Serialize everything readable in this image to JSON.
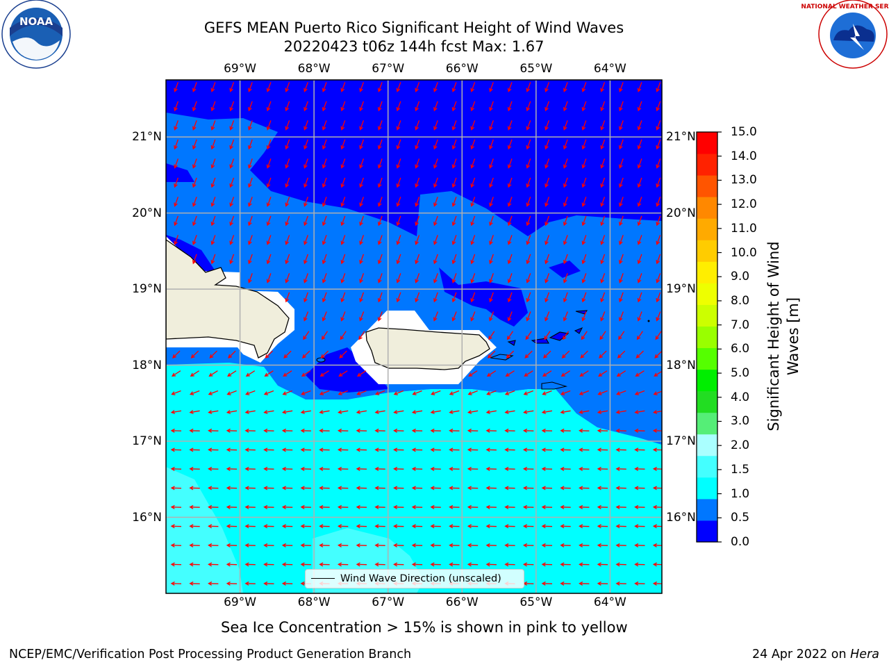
{
  "header": {
    "title": "GEFS MEAN Puerto Rico Significant Height of Wind Waves",
    "subtitle": "20220423 t06z 144h fcst   Max: 1.67"
  },
  "logos": {
    "left": "noaa-logo",
    "right": "national-weather-service-logo",
    "left_text": "NOAA",
    "right_text": "NATIONAL WEATHER SERVICE"
  },
  "map": {
    "lon_labels": [
      "69°W",
      "68°W",
      "67°W",
      "66°W",
      "65°W",
      "64°W"
    ],
    "lat_labels": [
      "21°N",
      "20°N",
      "19°N",
      "18°N",
      "17°N",
      "16°N"
    ],
    "extent": {
      "lon": [
        -70.0,
        -63.3
      ],
      "lat": [
        15.0,
        21.75
      ]
    },
    "lon_lines": [
      -69,
      -68,
      -67,
      -66,
      -65,
      -64
    ],
    "lat_lines": [
      21,
      20,
      19,
      18,
      17,
      16
    ],
    "colors": {
      "level_0": "#0000ff",
      "level_1": "#0077ff",
      "level_2": "#00ffff",
      "level_3": "#44ffff",
      "land": "#f0eedc",
      "arrow": "#ff0000",
      "grid": "#b0b0b0"
    },
    "legend_label": "Wind Wave Direction (unscaled)",
    "arrow_direction": "southwest-to-west"
  },
  "colorbar": {
    "label": "Significant Height of Wind Waves [m]",
    "ticks": [
      "0.0",
      "0.5",
      "1.0",
      "1.5",
      "2.0",
      "3.0",
      "4.0",
      "5.0",
      "6.0",
      "7.0",
      "8.0",
      "9.0",
      "10.0",
      "11.0",
      "12.0",
      "13.0",
      "14.0",
      "15.0"
    ],
    "colors": [
      "#0000ff",
      "#0077ff",
      "#00ffff",
      "#44ffff",
      "#aaffff",
      "#55ee77",
      "#22dd22",
      "#00ee00",
      "#55ff00",
      "#99ff00",
      "#ccff00",
      "#eeff00",
      "#ffee00",
      "#ffcc00",
      "#ffaa00",
      "#ff8800",
      "#ff5500",
      "#ff2200",
      "#ff0000"
    ]
  },
  "footer": {
    "note": "Sea Ice Concentration > 15% is shown in pink to yellow",
    "credit": "NCEP/EMC/Verification Post Processing Product Generation Branch",
    "date_prefix": "24 Apr 2022 on ",
    "host": "Hera"
  }
}
